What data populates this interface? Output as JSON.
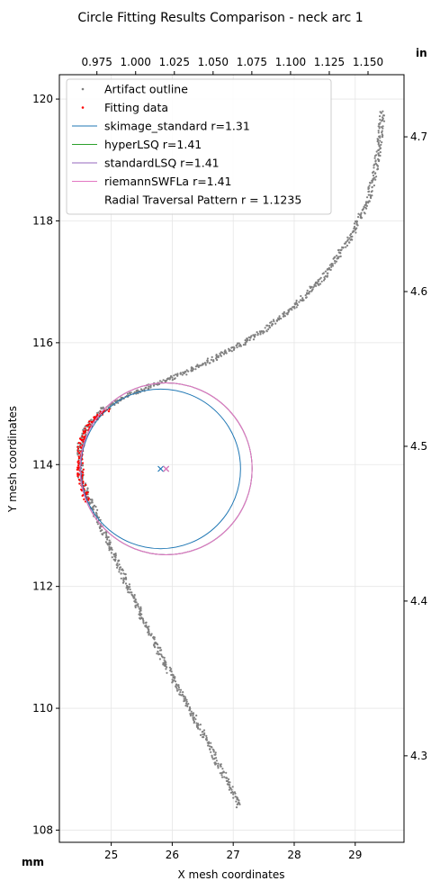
{
  "chart_data": {
    "type": "scatter",
    "title": "Circle Fitting Results Comparison - neck arc 1",
    "xlabel": "X mesh coordinates",
    "ylabel": "Y mesh coordinates",
    "x_unit_label": "mm",
    "secondary_unit_label": "in",
    "xlim": [
      24.15,
      29.8
    ],
    "ylim": [
      107.8,
      120.4
    ],
    "x_ticks": [
      "25",
      "26",
      "27",
      "28",
      "29"
    ],
    "x_tick_values": [
      25,
      26,
      27,
      28,
      29
    ],
    "y_ticks": [
      "108",
      "110",
      "112",
      "114",
      "116",
      "118",
      "120"
    ],
    "y_tick_values": [
      108,
      110,
      112,
      114,
      116,
      118,
      120
    ],
    "top_ticks": [
      "0.975",
      "1.000",
      "1.025",
      "1.050",
      "1.075",
      "1.100",
      "1.125",
      "1.150"
    ],
    "top_tick_values": [
      0.975,
      1.0,
      1.025,
      1.05,
      1.075,
      1.1,
      1.125,
      1.15
    ],
    "right_ticks": [
      "4.3",
      "4.4",
      "4.5",
      "4.6",
      "4.7"
    ],
    "right_tick_values": [
      4.3,
      4.4,
      4.5,
      4.6,
      4.7
    ],
    "grid": true,
    "legend_position": "top-left",
    "series": [
      {
        "name": "Artifact outline",
        "kind": "points",
        "color": "#808080",
        "path": [
          [
            27.1,
            108.4
          ],
          [
            26.6,
            109.4
          ],
          [
            26.0,
            110.5
          ],
          [
            25.5,
            111.5
          ],
          [
            25.05,
            112.5
          ],
          [
            24.7,
            113.3
          ],
          [
            24.5,
            113.8
          ],
          [
            24.48,
            114.3
          ],
          [
            24.6,
            114.6
          ],
          [
            24.85,
            114.9
          ],
          [
            25.3,
            115.15
          ],
          [
            25.8,
            115.35
          ],
          [
            26.3,
            115.55
          ],
          [
            27.0,
            115.9
          ],
          [
            27.5,
            116.2
          ],
          [
            28.0,
            116.6
          ],
          [
            28.5,
            117.1
          ],
          [
            28.9,
            117.7
          ],
          [
            29.2,
            118.3
          ],
          [
            29.35,
            118.9
          ],
          [
            29.42,
            119.5
          ],
          [
            29.45,
            119.8
          ]
        ]
      },
      {
        "name": "Fitting data",
        "kind": "points",
        "color": "#ff0000",
        "path": [
          [
            24.6,
            113.4
          ],
          [
            24.5,
            113.8
          ],
          [
            24.48,
            114.2
          ],
          [
            24.55,
            114.5
          ],
          [
            24.7,
            114.75
          ],
          [
            24.95,
            114.9
          ]
        ]
      },
      {
        "name": "skimage_standard r=1.31",
        "kind": "circle",
        "color": "#1f77b4",
        "cx": 25.81,
        "cy": 113.93,
        "r": 1.31
      },
      {
        "name": "hyperLSQ r=1.41",
        "kind": "circle",
        "color": "#2ca02c",
        "cx": 25.9,
        "cy": 113.93,
        "r": 1.41
      },
      {
        "name": "standardLSQ r=1.41",
        "kind": "circle",
        "color": "#9467bd",
        "cx": 25.9,
        "cy": 113.93,
        "r": 1.41
      },
      {
        "name": "riemannSWFLa r=1.41",
        "kind": "circle",
        "color": "#e377c2",
        "cx": 25.9,
        "cy": 113.93,
        "r": 1.41
      },
      {
        "name": "Radial Traversal Pattern r = 1.1235",
        "kind": "label",
        "color": "#ffffff"
      }
    ]
  }
}
